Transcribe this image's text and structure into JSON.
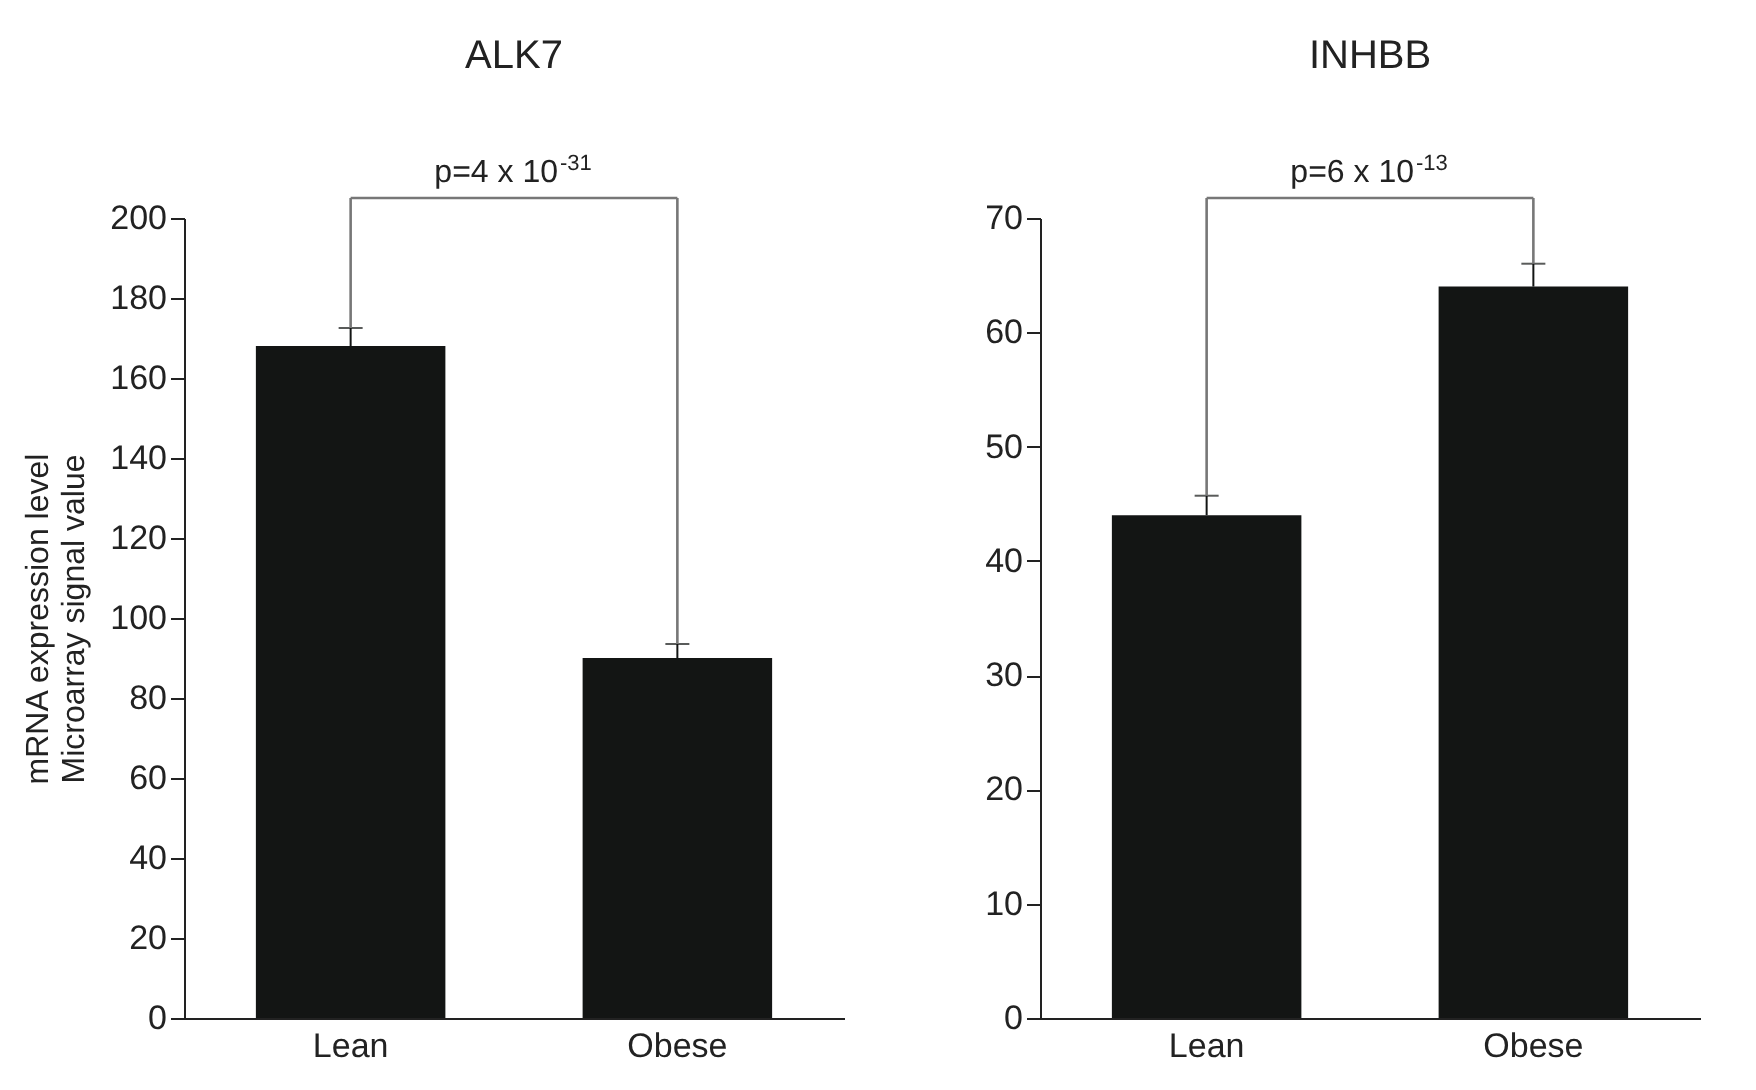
{
  "chart_data": [
    {
      "type": "bar",
      "title": "ALK7",
      "ylabel": "mRNA expression level\nMicroarray signal value",
      "categories": [
        "Lean",
        "Obese"
      ],
      "values": [
        168,
        90
      ],
      "errors": [
        [
          168,
          172.5
        ],
        [
          90,
          93.5
        ]
      ],
      "color": "#131514",
      "ylim": [
        0,
        200
      ],
      "yticks": [
        0,
        20,
        40,
        60,
        80,
        100,
        120,
        140,
        160,
        180,
        200
      ],
      "grid": false,
      "annotations": [
        "p=4 x 10$^{-31}$"
      ]
    },
    {
      "type": "bar",
      "title": "INHBB",
      "categories": [
        "Lean",
        "Obese"
      ],
      "values": [
        44,
        64
      ],
      "errors": [
        [
          44,
          45.7
        ],
        [
          64,
          66
        ]
      ],
      "color": "#131514",
      "ylim": [
        0,
        70
      ],
      "yticks": [
        0,
        10,
        20,
        30,
        40,
        50,
        60,
        70
      ],
      "grid": false,
      "annotations": [
        "p=6 x 10$^{-13}$"
      ]
    }
  ]
}
